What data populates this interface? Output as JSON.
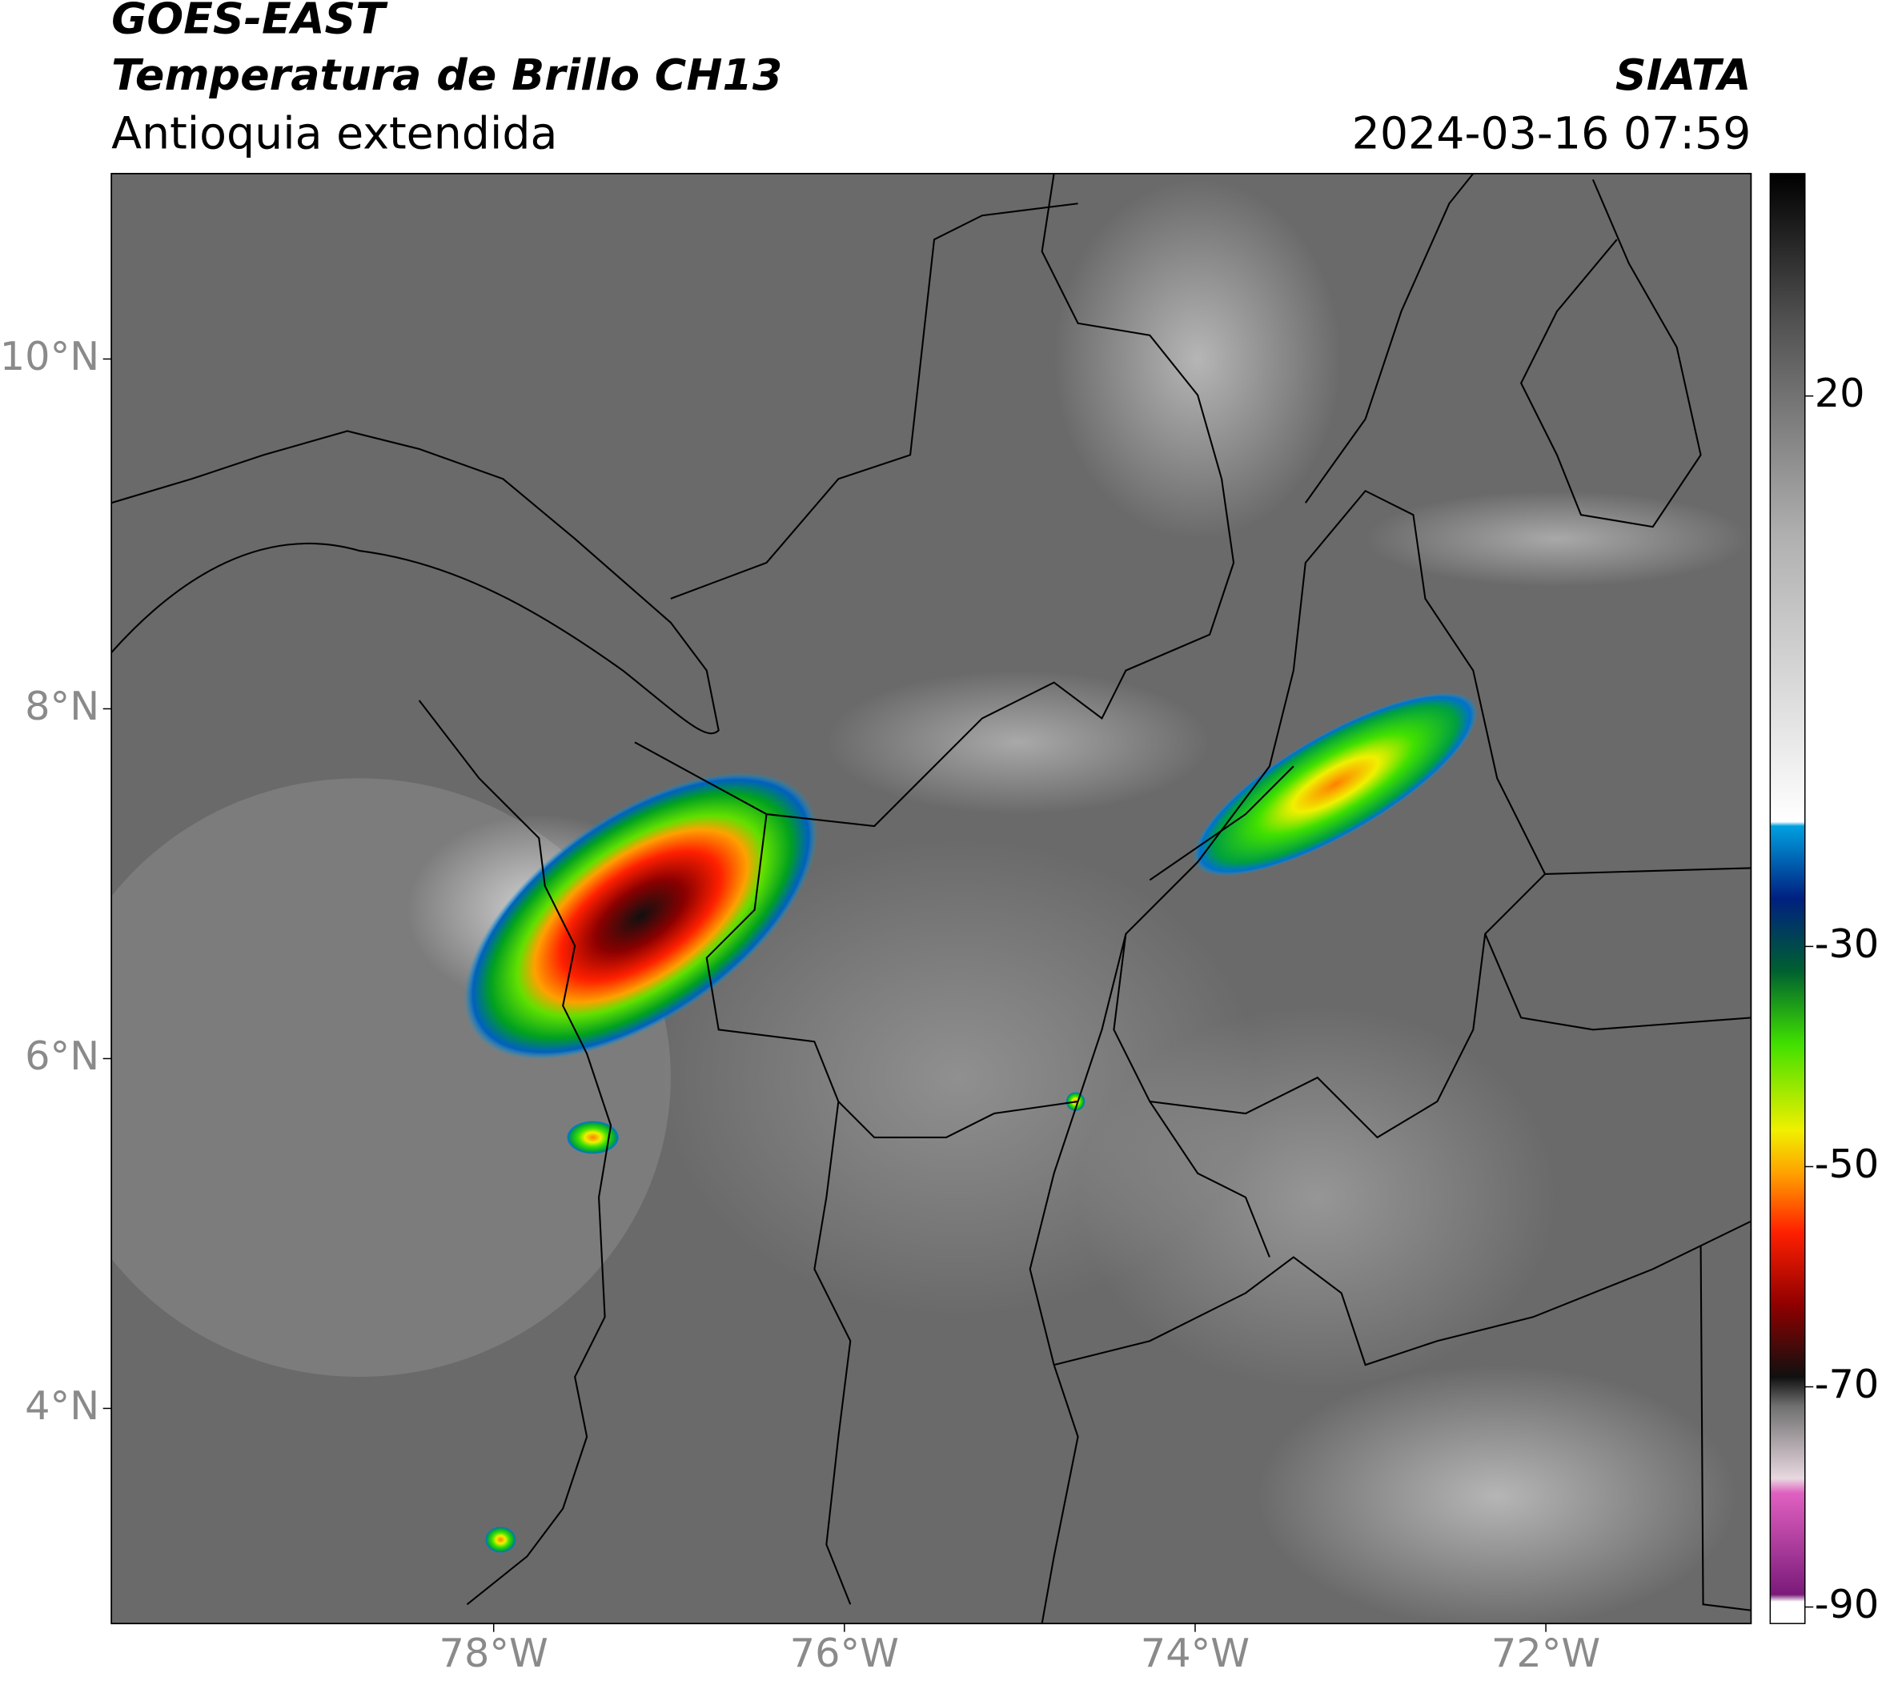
{
  "header": {
    "satellite": "GOES-EAST",
    "product": "Temperatura de Brillo CH13",
    "region": "Antioquia extendida",
    "agency": "SIATA",
    "datetime": "2024-03-16 07:59"
  },
  "map": {
    "lon_range": [
      -80.18,
      -70.83
    ],
    "lat_range": [
      2.77,
      11.06
    ],
    "lat_ticks": [
      {
        "value": 10,
        "label": "10°N"
      },
      {
        "value": 8,
        "label": "8°N"
      },
      {
        "value": 6,
        "label": "6°N"
      },
      {
        "value": 4,
        "label": "4°N"
      }
    ],
    "lon_ticks": [
      {
        "value": -78,
        "label": "78°W"
      },
      {
        "value": -76,
        "label": "76°W"
      },
      {
        "value": -74,
        "label": "74°W"
      },
      {
        "value": -72,
        "label": "72°W"
      }
    ]
  },
  "colorbar": {
    "range": [
      -91.5,
      40.2
    ],
    "ticks": [
      20,
      -30,
      -50,
      -70,
      -90
    ]
  }
}
